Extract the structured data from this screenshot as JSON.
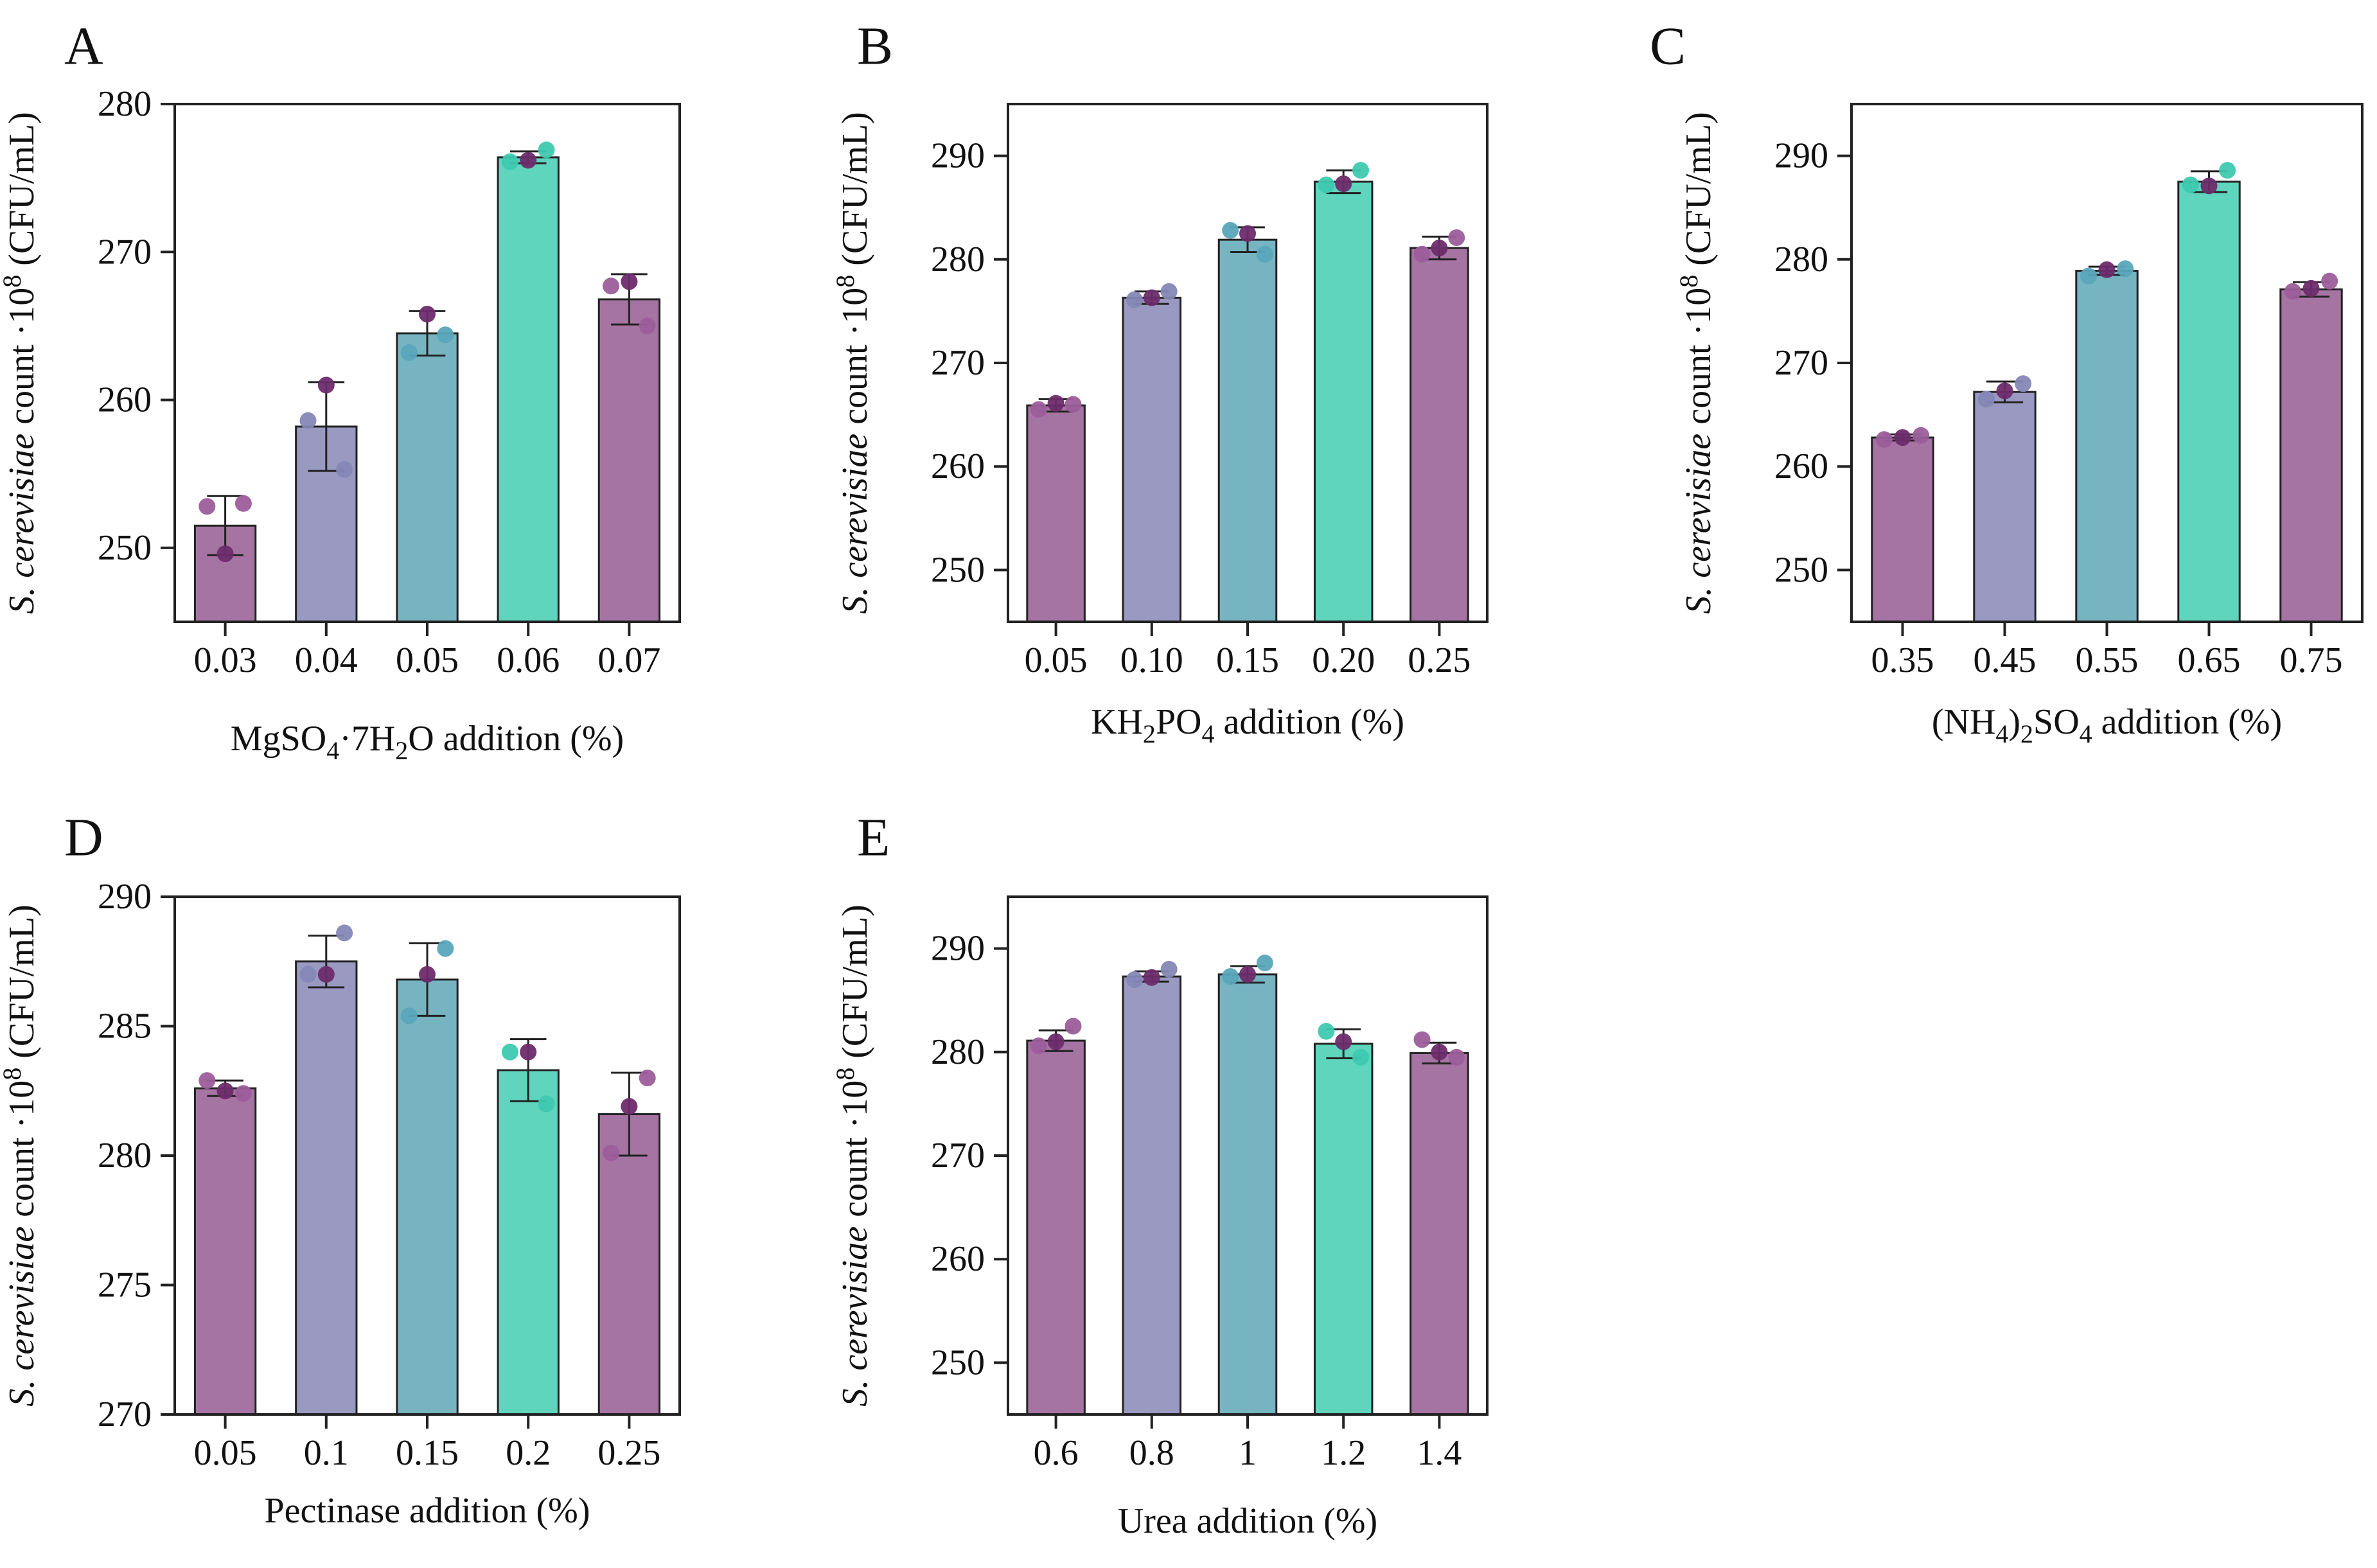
{
  "figure": {
    "colors": {
      "purple": "#a674a3",
      "lavender": "#9999c1",
      "teal": "#76b4c2",
      "mint": "#5fd5be",
      "dot_purple": "#9c5e9b",
      "dot_lavender": "#8587b6",
      "dot_teal": "#5aa6bb",
      "dot_mint": "#3ec9b0",
      "dot_dark": "#6d2c6c",
      "axis": "#222222"
    }
  },
  "chart_data": [
    {
      "panel": "A",
      "type": "bar",
      "ylabel_italic": "S. cerevisiae",
      "ylabel_rest": " count ·10",
      "ylabel_sup": "8",
      "ylabel_unit": " (CFU/mL)",
      "xlabel_parts": [
        {
          "text": "MgSO",
          "shift": "base"
        },
        {
          "text": "4",
          "shift": "sub"
        },
        {
          "text": "·7H",
          "shift": "base"
        },
        {
          "text": "2",
          "shift": "sub"
        },
        {
          "text": "O addition (%)",
          "shift": "base"
        }
      ],
      "categories": [
        "0.03",
        "0.04",
        "0.05",
        "0.06",
        "0.07"
      ],
      "values": [
        251.5,
        258.2,
        264.5,
        276.4,
        266.8
      ],
      "errors": [
        2.0,
        3.0,
        1.5,
        0.4,
        1.7
      ],
      "points": [
        [
          252.8,
          253.0,
          249.6
        ],
        [
          258.6,
          255.3,
          261.0
        ],
        [
          263.2,
          264.4,
          265.8
        ],
        [
          276.1,
          276.9,
          276.2
        ],
        [
          267.7,
          265.0,
          268.0
        ]
      ],
      "ylim": [
        245,
        280
      ],
      "yticks": [
        250,
        260,
        270,
        280
      ],
      "ytick_labels": [
        "250",
        "260",
        "270",
        "280"
      ]
    },
    {
      "panel": "B",
      "type": "bar",
      "ylabel_italic": "S. cerevisiae",
      "ylabel_rest": " count ·10",
      "ylabel_sup": "8",
      "ylabel_unit": " (CFU/mL)",
      "xlabel_parts": [
        {
          "text": "KH",
          "shift": "base"
        },
        {
          "text": "2",
          "shift": "sub"
        },
        {
          "text": "PO",
          "shift": "base"
        },
        {
          "text": "4",
          "shift": "sub"
        },
        {
          "text": " addition (%)",
          "shift": "base"
        }
      ],
      "categories": [
        "0.05",
        "0.10",
        "0.15",
        "0.20",
        "0.25"
      ],
      "values": [
        265.9,
        276.3,
        281.9,
        287.5,
        281.1
      ],
      "errors": [
        0.6,
        0.6,
        1.2,
        1.1,
        1.1
      ],
      "points": [
        [
          265.5,
          266.0,
          266.1
        ],
        [
          276.1,
          276.9,
          276.3
        ],
        [
          282.8,
          280.5,
          282.5
        ],
        [
          287.2,
          288.6,
          287.3
        ],
        [
          280.5,
          282.1,
          281.1
        ]
      ],
      "ylim": [
        245,
        295
      ],
      "yticks": [
        250,
        260,
        270,
        280,
        290
      ],
      "ytick_labels": [
        "250",
        "260",
        "270",
        "280",
        "290"
      ]
    },
    {
      "panel": "C",
      "type": "bar",
      "ylabel_italic": "S. cerevisiae",
      "ylabel_rest": " count ·10",
      "ylabel_sup": "8",
      "ylabel_unit": " (CFU/mL)",
      "xlabel_parts": [
        {
          "text": "(NH",
          "shift": "base"
        },
        {
          "text": "4",
          "shift": "sub"
        },
        {
          "text": ")",
          "shift": "base"
        },
        {
          "text": "2",
          "shift": "sub"
        },
        {
          "text": "SO",
          "shift": "base"
        },
        {
          "text": "4",
          "shift": "sub"
        },
        {
          "text": " addition (%)",
          "shift": "base"
        }
      ],
      "categories": [
        "0.35",
        "0.45",
        "0.55",
        "0.65",
        "0.75"
      ],
      "values": [
        262.8,
        267.2,
        278.9,
        287.5,
        277.1
      ],
      "errors": [
        0.3,
        1.0,
        0.4,
        1.0,
        0.7
      ],
      "points": [
        [
          262.6,
          263.0,
          262.8
        ],
        [
          266.5,
          268.0,
          267.3
        ],
        [
          278.4,
          279.1,
          279.0
        ],
        [
          287.2,
          288.6,
          287.1
        ],
        [
          276.9,
          277.9,
          277.2
        ]
      ],
      "ylim": [
        245,
        295
      ],
      "yticks": [
        250,
        260,
        270,
        280,
        290
      ],
      "ytick_labels": [
        "250",
        "260",
        "270",
        "280",
        "290"
      ]
    },
    {
      "panel": "D",
      "type": "bar",
      "ylabel_italic": "S. cerevisiae",
      "ylabel_rest": " count ·10",
      "ylabel_sup": "8",
      "ylabel_unit": " (CFU/mL)",
      "xlabel_parts": [
        {
          "text": "Pectinase addition (%)",
          "shift": "base"
        }
      ],
      "categories": [
        "0.05",
        "0.1",
        "0.15",
        "0.2",
        "0.25"
      ],
      "values": [
        282.6,
        287.5,
        286.8,
        283.3,
        281.6
      ],
      "errors": [
        0.3,
        1.0,
        1.4,
        1.2,
        1.6
      ],
      "points": [
        [
          282.9,
          282.4,
          282.5
        ],
        [
          287.0,
          288.6,
          287.0
        ],
        [
          285.4,
          288.0,
          287.0
        ],
        [
          284.0,
          282.0,
          284.0
        ],
        [
          280.1,
          283.0,
          281.9
        ]
      ],
      "ylim": [
        270,
        290
      ],
      "yticks": [
        270,
        275,
        280,
        285,
        290
      ],
      "ytick_labels": [
        "270",
        "275",
        "280",
        "285",
        "290"
      ]
    },
    {
      "panel": "E",
      "type": "bar",
      "ylabel_italic": "S. cerevisiae",
      "ylabel_rest": " count ·10",
      "ylabel_sup": "8",
      "ylabel_unit": " (CFU/mL)",
      "xlabel_parts": [
        {
          "text": "Urea addition (%)",
          "shift": "base"
        }
      ],
      "categories": [
        "0.6",
        "0.8",
        "1",
        "1.2",
        "1.4"
      ],
      "values": [
        281.1,
        287.3,
        287.5,
        280.8,
        279.9
      ],
      "errors": [
        1.0,
        0.5,
        0.8,
        1.4,
        1.0
      ],
      "points": [
        [
          280.6,
          282.5,
          281.0
        ],
        [
          287.0,
          288.0,
          287.2
        ],
        [
          287.3,
          288.6,
          287.5
        ],
        [
          282.0,
          279.5,
          281.0
        ],
        [
          281.2,
          279.5,
          280.0
        ]
      ],
      "ylim": [
        245,
        295
      ],
      "yticks": [
        250,
        260,
        270,
        280,
        290
      ],
      "ytick_labels": [
        "250",
        "260",
        "270",
        "280",
        "290"
      ]
    }
  ]
}
